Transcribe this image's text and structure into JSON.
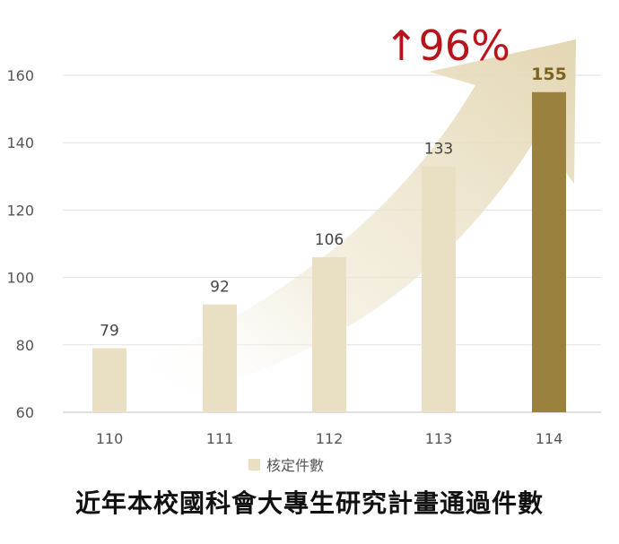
{
  "chart_data": {
    "type": "bar",
    "categories": [
      "110",
      "111",
      "112",
      "113",
      "114"
    ],
    "series": [
      {
        "name": "核定件數",
        "values": [
          79,
          92,
          106,
          133,
          155
        ]
      }
    ],
    "ylim": [
      60,
      160
    ],
    "yticks": [
      60,
      80,
      100,
      120,
      140,
      160
    ],
    "grid": true,
    "legend_position": "bottom",
    "annotation": "↑96%",
    "title": "近年本校國科會大專生研究計畫通過件數",
    "colors": {
      "normal_bar": "#e9dfc3",
      "highlight_bar": "#9a823e",
      "arrow": "#e7dcc0",
      "annotation": "#b8141b"
    }
  }
}
